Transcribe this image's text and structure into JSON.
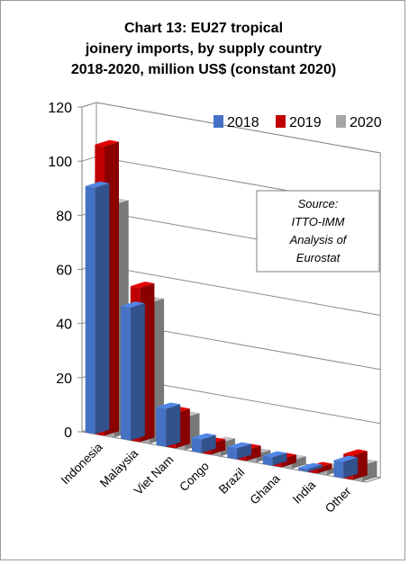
{
  "chart_data": {
    "type": "bar",
    "title": [
      "Chart 13: EU27 tropical",
      "joinery imports, by supply country",
      "2018-2020, million US$ (constant 2020)"
    ],
    "categories": [
      "Indonesia",
      "Malaysia",
      "Viet Nam",
      "Congo",
      "Brazil",
      "Ghana",
      "India",
      "Other"
    ],
    "series": [
      {
        "name": "2018",
        "color": "#4472c4",
        "values": [
          91,
          49,
          14,
          5,
          4,
          3,
          1,
          6
        ]
      },
      {
        "name": "2019",
        "color": "#c00000",
        "values": [
          107,
          57,
          13,
          4,
          4,
          3,
          2,
          9
        ]
      },
      {
        "name": "2020",
        "color": "#a6a6a6",
        "values": [
          86,
          52,
          12,
          5,
          3,
          3,
          2,
          6
        ]
      }
    ],
    "ylim": [
      0,
      120
    ],
    "yticks": [
      0,
      20,
      40,
      60,
      80,
      100,
      120
    ],
    "grid": true,
    "legend": "top-right",
    "annotation": [
      "Source:",
      "ITTO-IMM",
      "Analysis of",
      "Eurostat"
    ],
    "xlabel": "",
    "ylabel": ""
  }
}
